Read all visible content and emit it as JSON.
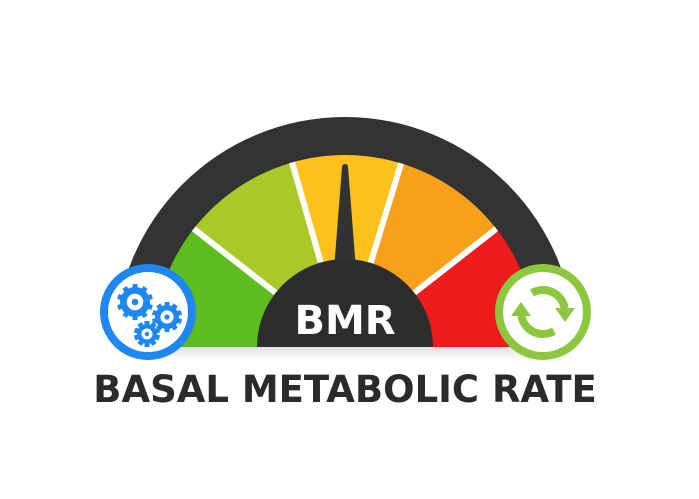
{
  "gauge": {
    "hub_label": "BMR",
    "needle_position_percent": 50,
    "segment_colors": [
      "#5ebd1e",
      "#a9c929",
      "#fcc21b",
      "#f9a01b",
      "#ee1c1c"
    ],
    "frame_color": "#333333"
  },
  "left_badge": {
    "icon": "gears-icon",
    "color": "#1e88f0"
  },
  "right_badge": {
    "icon": "refresh-arrows-icon",
    "color": "#8dc63f"
  },
  "title": "BASAL METABOLIC RATE"
}
